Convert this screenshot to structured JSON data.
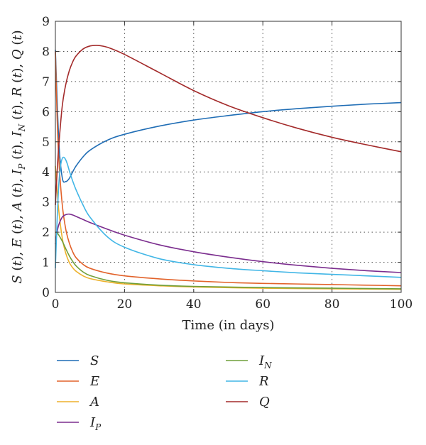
{
  "chart_data": {
    "type": "line",
    "xlabel": "Time (in days)",
    "ylabel_parts": [
      {
        "name": "S"
      },
      {
        "name": "E"
      },
      {
        "name": "A"
      },
      {
        "name": "I",
        "sub": "P"
      },
      {
        "name": "I",
        "sub": "N"
      },
      {
        "name": "R"
      },
      {
        "name": "Q"
      }
    ],
    "xlim": [
      0,
      100
    ],
    "ylim": [
      0,
      9
    ],
    "xticks": [
      0,
      20,
      40,
      60,
      80,
      100
    ],
    "yticks": [
      0,
      1,
      2,
      3,
      4,
      5,
      6,
      7,
      8,
      9
    ],
    "grid": true,
    "grid_style": "dotted",
    "legend_placement": "below",
    "series": [
      {
        "key": "S",
        "name": "S",
        "color": "#1f6db5",
        "x": [
          0,
          1,
          2,
          3,
          4,
          5,
          6,
          8,
          10,
          15,
          20,
          30,
          40,
          50,
          60,
          70,
          80,
          90,
          100
        ],
        "y": [
          8.05,
          5.0,
          3.8,
          3.68,
          3.78,
          4.0,
          4.2,
          4.5,
          4.72,
          5.05,
          5.25,
          5.52,
          5.72,
          5.87,
          6.0,
          6.1,
          6.18,
          6.25,
          6.3
        ]
      },
      {
        "key": "E",
        "name": "E",
        "color": "#e2622a",
        "x": [
          0,
          0.5,
          1,
          2,
          3,
          4,
          5,
          6,
          8,
          10,
          15,
          20,
          30,
          40,
          50,
          60,
          70,
          80,
          90,
          100
        ],
        "y": [
          8.0,
          5.8,
          4.4,
          2.9,
          2.1,
          1.65,
          1.35,
          1.15,
          0.93,
          0.8,
          0.64,
          0.55,
          0.45,
          0.38,
          0.33,
          0.3,
          0.28,
          0.26,
          0.24,
          0.22
        ]
      },
      {
        "key": "A",
        "name": "A",
        "color": "#edb12b",
        "x": [
          0,
          0.5,
          1,
          2,
          3,
          4,
          5,
          6,
          8,
          10,
          15,
          20,
          30,
          40,
          60,
          80,
          100
        ],
        "y": [
          4.2,
          3.4,
          2.7,
          1.8,
          1.3,
          1.0,
          0.82,
          0.7,
          0.55,
          0.46,
          0.35,
          0.28,
          0.22,
          0.18,
          0.14,
          0.12,
          0.1
        ]
      },
      {
        "key": "IP",
        "name": "I",
        "sub": "P",
        "color": "#7b2d8e",
        "x": [
          0,
          0.5,
          1,
          2,
          3,
          4,
          5,
          6,
          8,
          10,
          15,
          20,
          30,
          40,
          50,
          60,
          70,
          80,
          90,
          100
        ],
        "y": [
          1.6,
          2.0,
          2.25,
          2.5,
          2.58,
          2.6,
          2.57,
          2.52,
          2.42,
          2.32,
          2.1,
          1.9,
          1.58,
          1.35,
          1.17,
          1.02,
          0.9,
          0.8,
          0.72,
          0.66
        ]
      },
      {
        "key": "IN",
        "name": "I",
        "sub": "N",
        "color": "#6f9f3a",
        "x": [
          0,
          0.5,
          1,
          2,
          3,
          4,
          5,
          6,
          8,
          10,
          15,
          20,
          30,
          40,
          60,
          80,
          100
        ],
        "y": [
          2.0,
          1.98,
          1.9,
          1.7,
          1.45,
          1.22,
          1.03,
          0.88,
          0.68,
          0.56,
          0.4,
          0.32,
          0.24,
          0.2,
          0.16,
          0.14,
          0.12
        ]
      },
      {
        "key": "R",
        "name": "R",
        "color": "#41b6e6",
        "x": [
          0,
          0.5,
          1,
          1.5,
          2,
          2.5,
          3,
          3.5,
          4,
          5,
          6,
          8,
          10,
          15,
          20,
          30,
          40,
          50,
          60,
          70,
          80,
          90,
          100
        ],
        "y": [
          0.8,
          2.4,
          3.6,
          4.2,
          4.45,
          4.48,
          4.4,
          4.25,
          4.05,
          3.7,
          3.4,
          2.9,
          2.5,
          1.85,
          1.5,
          1.12,
          0.92,
          0.8,
          0.72,
          0.65,
          0.6,
          0.55,
          0.5
        ]
      },
      {
        "key": "Q",
        "name": "Q",
        "color": "#a32a2a",
        "x": [
          0,
          0.5,
          1,
          2,
          3,
          4,
          5,
          6,
          8,
          10,
          12,
          14,
          16,
          20,
          30,
          40,
          50,
          60,
          70,
          80,
          90,
          100
        ],
        "y": [
          2.9,
          4.0,
          4.9,
          6.2,
          6.9,
          7.35,
          7.65,
          7.85,
          8.08,
          8.18,
          8.2,
          8.17,
          8.1,
          7.9,
          7.3,
          6.7,
          6.2,
          5.8,
          5.45,
          5.15,
          4.9,
          4.67
        ]
      }
    ],
    "legend": [
      {
        "key": "S",
        "name": "S"
      },
      {
        "key": "E",
        "name": "E"
      },
      {
        "key": "A",
        "name": "A"
      },
      {
        "key": "IP",
        "name": "I",
        "sub": "P"
      },
      {
        "key": "IN",
        "name": "I",
        "sub": "N"
      },
      {
        "key": "R",
        "name": "R"
      },
      {
        "key": "Q",
        "name": "Q"
      }
    ]
  }
}
